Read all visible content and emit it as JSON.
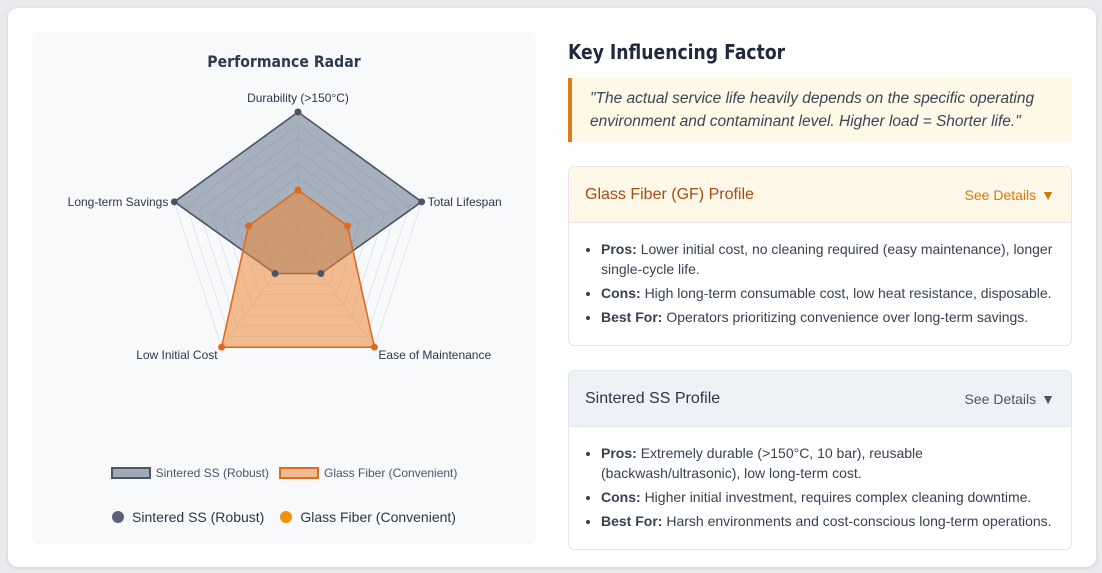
{
  "chart_panel": {
    "title": "Performance Radar",
    "legend_boxes": [
      {
        "label": "Sintered SS (Robust)",
        "fill": "rgba(113,128,150,0.6)",
        "stroke": "#4a5568"
      },
      {
        "label": "Glass Fiber (Convenient)",
        "fill": "rgba(237,137,54,0.55)",
        "stroke": "#dd6b20"
      }
    ],
    "legend_dots": [
      {
        "label": "Sintered SS (Robust)",
        "color": "#5a6275"
      },
      {
        "label": "Glass Fiber (Convenient)",
        "color": "#f0920e"
      }
    ]
  },
  "chart_data": {
    "type": "radar",
    "axes": [
      "Durability (>150°C)",
      "Total Lifespan",
      "Ease of Maintenance",
      "Low Initial Cost",
      "Long-term Savings"
    ],
    "range": [
      0,
      10
    ],
    "series": [
      {
        "name": "Sintered SS (Robust)",
        "values": [
          10,
          10,
          3,
          3,
          10
        ],
        "fill": "rgba(100,116,139,0.55)",
        "stroke": "#4a5568"
      },
      {
        "name": "Glass Fiber (Convenient)",
        "values": [
          4,
          4,
          10,
          10,
          4
        ],
        "fill": "rgba(237,137,54,0.55)",
        "stroke": "#dd6b20"
      }
    ]
  },
  "right": {
    "title": "Key Influencing Factor",
    "quote": "\"The actual service life heavily depends on the specific operating environment and contaminant level. Higher load = Shorter life.\"",
    "profiles": [
      {
        "name": "Glass Fiber (GF) Profile",
        "details_label": "See Details",
        "pros_label": "Pros:",
        "pros": "Lower initial cost, no cleaning required (easy maintenance), longer single-cycle life.",
        "cons_label": "Cons:",
        "cons": "High long-term consumable cost, low heat resistance, disposable.",
        "best_label": "Best For:",
        "best": "Operators prioritizing convenience over long-term savings."
      },
      {
        "name": "Sintered SS Profile",
        "details_label": "See Details",
        "pros_label": "Pros:",
        "pros": "Extremely durable (>150°C, 10 bar), reusable (backwash/ultrasonic), low long-term cost.",
        "cons_label": "Cons:",
        "cons": "Higher initial investment, requires complex cleaning downtime.",
        "best_label": "Best For:",
        "best": "Harsh environments and cost-conscious long-term operations."
      }
    ]
  }
}
